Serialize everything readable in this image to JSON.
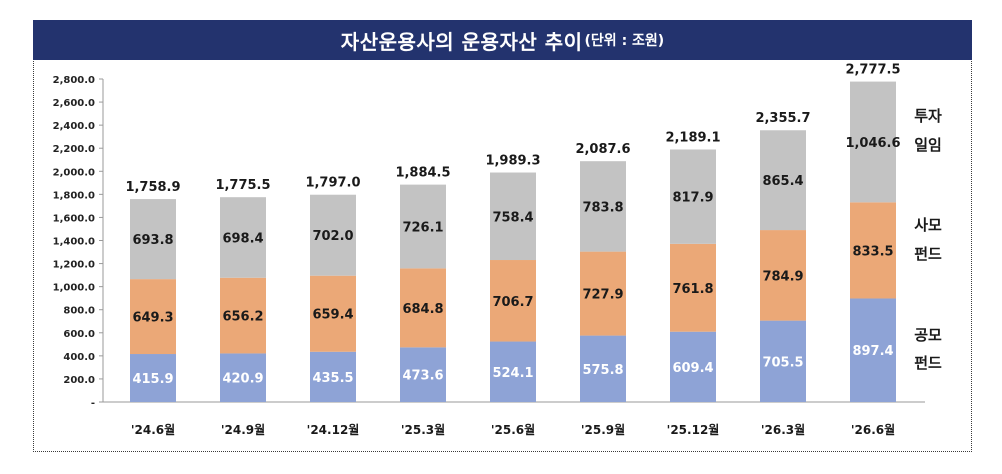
{
  "header": {
    "title": "자산운용사의 운용자산 추이",
    "unit": "(단위 : 조원)"
  },
  "chart_data": {
    "type": "bar",
    "stacked": true,
    "categories": [
      "'24.6월",
      "'24.9월",
      "'24.12월",
      "'25.3월",
      "'25.6월",
      "'25.9월",
      "'25.12월",
      "'26.3월",
      "'26.6월"
    ],
    "series": [
      {
        "name": "공모\n펀드",
        "color": "#8ea3d6",
        "values": [
          415.9,
          420.9,
          435.5,
          473.6,
          524.1,
          575.8,
          609.4,
          705.5,
          897.4
        ]
      },
      {
        "name": "사모\n펀드",
        "color": "#eba877",
        "values": [
          649.3,
          656.2,
          659.4,
          684.8,
          706.7,
          727.9,
          761.8,
          784.9,
          833.5
        ]
      },
      {
        "name": "투자\n일임",
        "color": "#c3c3c3",
        "values": [
          693.8,
          698.4,
          702.0,
          726.1,
          758.4,
          783.8,
          817.9,
          865.4,
          1046.6
        ]
      }
    ],
    "series_labels": [
      "공모",
      "펀드",
      "사모",
      "펀드",
      "투자",
      "일임"
    ],
    "totals": [
      "1,758.9",
      "1,775.5",
      "1,797.0",
      "1,884.5",
      "1,989.3",
      "2,087.6",
      "2,189.1",
      "2,355.7",
      "2,777.5"
    ],
    "y_ticks": [
      "-",
      "200.0",
      "400.0",
      "600.0",
      "800.0",
      "1,000.0",
      "1,200.0",
      "1,400.0",
      "1,600.0",
      "1,800.0",
      "2,000.0",
      "2,200.0",
      "2,400.0",
      "2,600.0",
      "2,800.0"
    ],
    "ylim": [
      0,
      2800
    ],
    "grid": false,
    "legend": "right, inline labels beside last bar"
  }
}
